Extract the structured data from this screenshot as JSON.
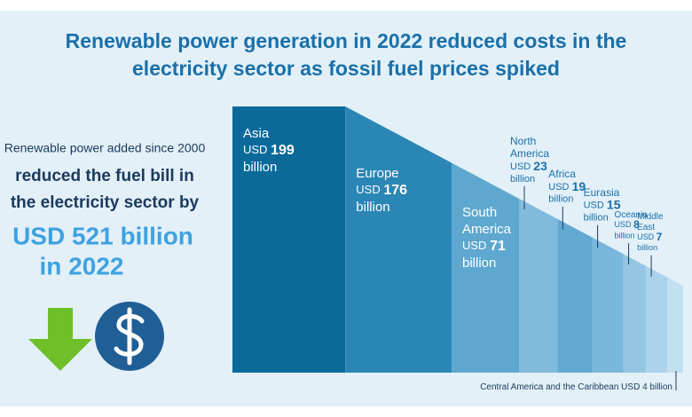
{
  "chart_data": {
    "type": "descending-columns",
    "title_lines": [
      "Renewable power generation in 2022 reduced costs in the",
      "electricity sector as fossil fuel prices spiked"
    ],
    "callout": {
      "lines": [
        "Renewable power added since 2000",
        "reduced the fuel bill in",
        "the electricity sector by"
      ],
      "highlight_lines": [
        "USD 521 billion",
        "in 2022"
      ]
    },
    "value_prefix": "USD",
    "value_suffix": "billion",
    "categories": [
      "Asia",
      "Europe",
      "South America",
      "North America",
      "Africa",
      "Eurasia",
      "Oceania",
      "Middle East",
      "Central America and the Caribbean"
    ],
    "values": [
      199,
      176,
      71,
      23,
      19,
      15,
      8,
      7,
      4
    ],
    "colors": [
      "#0b6a9a",
      "#2a86b5",
      "#5ea8cf",
      "#80bbdc",
      "#62a9d1",
      "#79b7dc",
      "#94c6e3",
      "#aad3ea",
      "#c3e0f1"
    ]
  }
}
